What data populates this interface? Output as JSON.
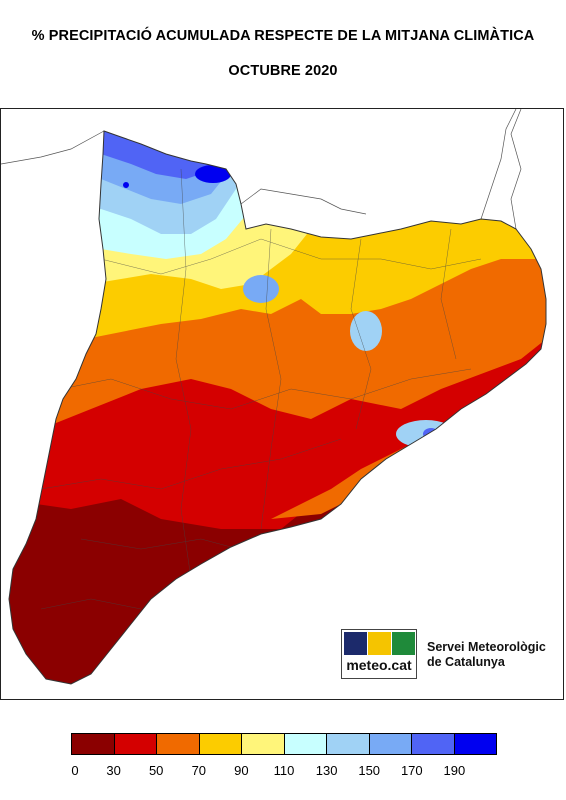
{
  "title": "% PRECIPITACIÓ ACUMULADA RESPECTE DE LA MITJANA CLIMÀTICA",
  "subtitle": "OCTUBRE 2020",
  "logo": {
    "wordmark": "meteo.cat",
    "organization_line1": "Servei Meteorològic",
    "organization_line2": "de Catalunya",
    "tile_colors": [
      "#1c2a6b",
      "#f5c400",
      "#1f8a3a"
    ]
  },
  "legend": {
    "colors": [
      "#8b0000",
      "#d40000",
      "#f06a00",
      "#fccc00",
      "#fff57a",
      "#c8ffff",
      "#a0d2f5",
      "#78aaf5",
      "#5064f5",
      "#0000f0"
    ],
    "tick_labels": [
      "0",
      "30",
      "50",
      "70",
      "90",
      "110",
      "130",
      "150",
      "170",
      "190"
    ]
  }
}
